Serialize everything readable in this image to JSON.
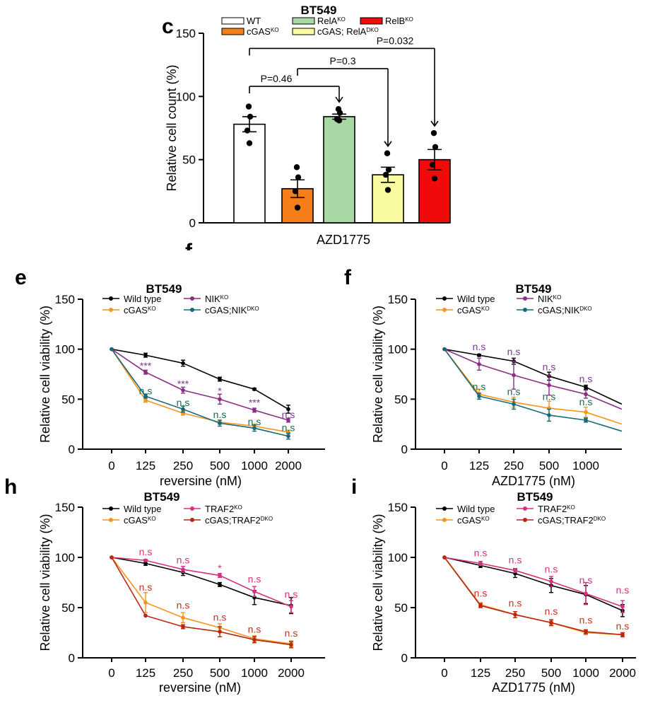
{
  "colors": {
    "black": "#000000",
    "orange": "#f7941d",
    "purple": "#8b2d86",
    "teal": "#17697a",
    "pink": "#d6307f",
    "darkred": "#b7260f",
    "wt_fill": "#ffffff",
    "cgas_fill": "#f47f1a",
    "rela_fill": "#a8d8a3",
    "dko_fill": "#fafaa0",
    "relb_fill": "#f00a0a",
    "sig_purple": "#7b3b8b",
    "sig_green": "#17694f",
    "sig_pink": "#d6307f",
    "sig_red": "#c0311f"
  },
  "chart_data": [
    {
      "id": "c",
      "panel_letter": "c",
      "type": "bar",
      "title": "BT549",
      "ylabel": "Relative cell count (%)",
      "xlabel": "AZD1775",
      "ylim": [
        0,
        150
      ],
      "yticks": [
        0,
        50,
        100,
        150
      ],
      "legend": [
        {
          "name": "WT",
          "sup": "",
          "color_key": "wt_fill"
        },
        {
          "name": "RelA",
          "sup": "KO",
          "color_key": "rela_fill"
        },
        {
          "name": "RelB",
          "sup": "KO",
          "color_key": "relb_fill"
        },
        {
          "name": "cGAS",
          "sup": "KO",
          "color_key": "cgas_fill"
        },
        {
          "name": "cGAS; RelA",
          "sup": "DKO",
          "color_key": "dko_fill"
        }
      ],
      "bars": [
        {
          "name": "WT",
          "value": 78,
          "err": 6,
          "points": [
            92,
            84,
            73,
            63
          ],
          "color_key": "wt_fill"
        },
        {
          "name": "cGAS KO",
          "value": 27,
          "err": 7,
          "points": [
            44,
            36,
            25,
            12
          ],
          "color_key": "cgas_fill"
        },
        {
          "name": "RelA KO",
          "value": 84,
          "err": 2,
          "points": [
            90,
            87,
            82,
            81
          ],
          "color_key": "rela_fill"
        },
        {
          "name": "cGAS; RelA DKO",
          "value": 38,
          "err": 6,
          "points": [
            55,
            42,
            38,
            26
          ],
          "color_key": "dko_fill"
        },
        {
          "name": "RelB KO",
          "value": 50,
          "err": 8,
          "points": [
            71,
            60,
            46,
            35
          ],
          "color_key": "relb_fill"
        }
      ],
      "comparisons": [
        {
          "from": 0,
          "to": 2,
          "label": "P=0.46",
          "y": 108
        },
        {
          "from": 1,
          "to": 3,
          "label": "P=0.3",
          "y": 122
        },
        {
          "from": 0,
          "to": 4,
          "label": "P=0.032",
          "y": 138
        }
      ]
    },
    {
      "id": "e",
      "panel_letter": "e",
      "type": "line",
      "title": "BT549",
      "ylabel": "Relative cell viability (%)",
      "xlabel": "reversine (nM)",
      "x": [
        "0",
        "125",
        "250",
        "500",
        "1000",
        "2000"
      ],
      "ylim": [
        0,
        150
      ],
      "yticks": [
        0,
        50,
        100,
        150
      ],
      "series": [
        {
          "name": "Wild type",
          "sup": "",
          "color_key": "black",
          "values": [
            100,
            94,
            86,
            70,
            60,
            40
          ],
          "err": [
            0,
            2,
            3,
            2,
            1,
            4
          ]
        },
        {
          "name": "NIK",
          "sup": "KO",
          "color_key": "purple",
          "values": [
            100,
            77,
            59,
            50,
            39,
            29
          ],
          "err": [
            0,
            2,
            3,
            5,
            2,
            2
          ]
        },
        {
          "name": "cGAS",
          "sup": "KO",
          "color_key": "orange",
          "values": [
            100,
            49,
            36,
            27,
            23,
            17
          ],
          "err": [
            0,
            2,
            2,
            2,
            2,
            2
          ]
        },
        {
          "name": "cGAS;NIK",
          "sup": "DKO",
          "color_key": "teal",
          "values": [
            100,
            53,
            40,
            26,
            21,
            13
          ],
          "err": [
            0,
            2,
            3,
            3,
            3,
            3
          ]
        }
      ],
      "annotations": [
        {
          "x": 1,
          "y": 80,
          "text": "***",
          "color_key": "sig_purple"
        },
        {
          "x": 1,
          "y": 55,
          "text": "n.s",
          "color_key": "sig_green"
        },
        {
          "x": 2,
          "y": 62,
          "text": "***",
          "color_key": "sig_purple"
        },
        {
          "x": 2,
          "y": 43,
          "text": "n.s",
          "color_key": "sig_green"
        },
        {
          "x": 3,
          "y": 55,
          "text": "*",
          "color_key": "sig_purple"
        },
        {
          "x": 3,
          "y": 31,
          "text": "n.s",
          "color_key": "sig_green"
        },
        {
          "x": 4,
          "y": 43,
          "text": "***",
          "color_key": "sig_purple"
        },
        {
          "x": 4,
          "y": 24,
          "text": "n.s",
          "color_key": "sig_green"
        },
        {
          "x": 5,
          "y": 31,
          "text": "n.s",
          "color_key": "sig_purple"
        },
        {
          "x": 5,
          "y": 18,
          "text": "n.s",
          "color_key": "sig_green"
        }
      ]
    },
    {
      "id": "f",
      "panel_letter": "f",
      "type": "line",
      "title": "BT549",
      "ylabel": "Relative cell viability (%)",
      "xlabel": "AZD1775 (nM)",
      "x": [
        "0",
        "125",
        "250",
        "500",
        "1000",
        ""
      ],
      "ylim": [
        0,
        150
      ],
      "yticks": [
        0,
        50,
        100,
        150
      ],
      "series": [
        {
          "name": "Wild type",
          "sup": "",
          "color_key": "black",
          "values": [
            100,
            94,
            88,
            73,
            62,
            45
          ],
          "err": [
            0,
            1,
            3,
            4,
            2,
            0
          ]
        },
        {
          "name": "NIK",
          "sup": "KO",
          "color_key": "purple",
          "values": [
            100,
            85,
            74,
            64,
            55,
            40
          ],
          "err": [
            0,
            6,
            14,
            10,
            4,
            0
          ]
        },
        {
          "name": "cGAS",
          "sup": "KO",
          "color_key": "orange",
          "values": [
            100,
            55,
            47,
            41,
            37,
            25
          ],
          "err": [
            0,
            5,
            5,
            7,
            5,
            0
          ]
        },
        {
          "name": "cGAS;NIK",
          "sup": "DKO",
          "color_key": "teal",
          "values": [
            100,
            53,
            45,
            34,
            29,
            18
          ],
          "err": [
            0,
            3,
            5,
            6,
            2,
            0
          ]
        }
      ],
      "annotations": [
        {
          "x": 1,
          "y": 99,
          "text": "n.s",
          "color_key": "sig_purple"
        },
        {
          "x": 2,
          "y": 94,
          "text": "n.s",
          "color_key": "sig_purple"
        },
        {
          "x": 3,
          "y": 79,
          "text": "n.s",
          "color_key": "sig_purple"
        },
        {
          "x": 4,
          "y": 67,
          "text": "n.s",
          "color_key": "sig_purple"
        },
        {
          "x": 1,
          "y": 59,
          "text": "n.s",
          "color_key": "sig_green"
        },
        {
          "x": 2,
          "y": 54,
          "text": "n.s",
          "color_key": "sig_green"
        },
        {
          "x": 3,
          "y": 49,
          "text": "n.s",
          "color_key": "sig_green"
        },
        {
          "x": 4,
          "y": 44,
          "text": "n.s",
          "color_key": "sig_green"
        }
      ]
    },
    {
      "id": "h",
      "panel_letter": "h",
      "type": "line",
      "title": "BT549",
      "ylabel": "Relative cell viability (%)",
      "xlabel": "reversine (nM)",
      "x": [
        "0",
        "125",
        "250",
        "500",
        "1000",
        "2000"
      ],
      "ylim": [
        0,
        150
      ],
      "yticks": [
        0,
        50,
        100,
        150
      ],
      "series": [
        {
          "name": "Wild type",
          "sup": "",
          "color_key": "black",
          "values": [
            100,
            94,
            85,
            73,
            60,
            52
          ],
          "err": [
            0,
            2,
            3,
            2,
            7,
            8
          ]
        },
        {
          "name": "TRAF2",
          "sup": "KO",
          "color_key": "pink",
          "values": [
            100,
            97,
            88,
            82,
            66,
            51
          ],
          "err": [
            0,
            1,
            3,
            2,
            5,
            6
          ]
        },
        {
          "name": "cGAS",
          "sup": "KO",
          "color_key": "orange",
          "values": [
            100,
            55,
            40,
            30,
            19,
            14
          ],
          "err": [
            0,
            10,
            5,
            4,
            3,
            3
          ]
        },
        {
          "name": "cGAS;TRAF2",
          "sup": "DKO",
          "color_key": "darkred",
          "values": [
            100,
            42,
            31,
            26,
            18,
            13
          ],
          "err": [
            0,
            0,
            2,
            5,
            3,
            3
          ]
        }
      ],
      "annotations": [
        {
          "x": 1,
          "y": 102,
          "text": "n.s",
          "color_key": "sig_pink"
        },
        {
          "x": 2,
          "y": 94,
          "text": "n.s",
          "color_key": "sig_pink"
        },
        {
          "x": 3,
          "y": 86,
          "text": "*",
          "color_key": "sig_pink"
        },
        {
          "x": 4,
          "y": 75,
          "text": "n.s",
          "color_key": "sig_pink"
        },
        {
          "x": 5,
          "y": 60,
          "text": "n.s",
          "color_key": "sig_pink"
        },
        {
          "x": 1,
          "y": 67,
          "text": "n.s",
          "color_key": "sig_red"
        },
        {
          "x": 2,
          "y": 49,
          "text": "n.s",
          "color_key": "sig_red"
        },
        {
          "x": 3,
          "y": 37,
          "text": "n.s",
          "color_key": "sig_red"
        },
        {
          "x": 4,
          "y": 25,
          "text": "n.s",
          "color_key": "sig_red"
        },
        {
          "x": 5,
          "y": 21,
          "text": "n.s",
          "color_key": "sig_red"
        }
      ]
    },
    {
      "id": "i",
      "panel_letter": "i",
      "type": "line",
      "title": "BT549",
      "ylabel": "Relative cell viability (%)",
      "xlabel": "AZD1775 (nM)",
      "x": [
        "0",
        "125",
        "250",
        "500",
        "1000",
        "2000"
      ],
      "ylim": [
        0,
        150
      ],
      "yticks": [
        0,
        50,
        100,
        150
      ],
      "series": [
        {
          "name": "Wild type",
          "sup": "",
          "color_key": "black",
          "values": [
            100,
            92,
            84,
            72,
            63,
            47
          ],
          "err": [
            0,
            2,
            4,
            7,
            9,
            6
          ]
        },
        {
          "name": "TRAF2",
          "sup": "KO",
          "color_key": "pink",
          "values": [
            100,
            94,
            87,
            76,
            64,
            51
          ],
          "err": [
            0,
            2,
            2,
            5,
            11,
            6
          ]
        },
        {
          "name": "cGAS",
          "sup": "KO",
          "color_key": "orange",
          "values": [
            100,
            53,
            43,
            35,
            25,
            23
          ],
          "err": [
            0,
            2,
            3,
            2,
            2,
            2
          ]
        },
        {
          "name": "cGAS;TRAF2",
          "sup": "DKO",
          "color_key": "darkred",
          "values": [
            100,
            52,
            43,
            35,
            26,
            23
          ],
          "err": [
            0,
            2,
            3,
            3,
            2,
            2
          ]
        }
      ],
      "annotations": [
        {
          "x": 1,
          "y": 101,
          "text": "n.s",
          "color_key": "sig_pink"
        },
        {
          "x": 2,
          "y": 94,
          "text": "n.s",
          "color_key": "sig_pink"
        },
        {
          "x": 3,
          "y": 85,
          "text": "n.s",
          "color_key": "sig_pink"
        },
        {
          "x": 4,
          "y": 74,
          "text": "n.s",
          "color_key": "sig_pink"
        },
        {
          "x": 5,
          "y": 64,
          "text": "n.s",
          "color_key": "sig_pink"
        },
        {
          "x": 1,
          "y": 61,
          "text": "n.s",
          "color_key": "sig_red"
        },
        {
          "x": 2,
          "y": 51,
          "text": "n.s",
          "color_key": "sig_red"
        },
        {
          "x": 3,
          "y": 43,
          "text": "n.s",
          "color_key": "sig_red"
        },
        {
          "x": 4,
          "y": 34,
          "text": "n.s",
          "color_key": "sig_red"
        },
        {
          "x": 5,
          "y": 28,
          "text": "n.s",
          "color_key": "sig_red"
        }
      ]
    }
  ]
}
